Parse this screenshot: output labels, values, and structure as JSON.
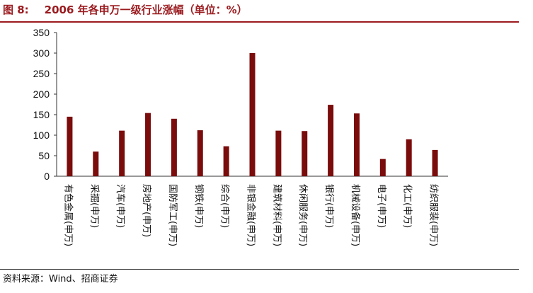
{
  "header": {
    "figure_label": "图 8:",
    "title": "2006 年各申万一级行业涨幅（单位：%）"
  },
  "footer": {
    "source": "资料来源：Wind、招商证券"
  },
  "colors": {
    "bar": "#7A0C0C",
    "accent": "#9B1B1F"
  },
  "chart_data": {
    "type": "bar",
    "title": "2006 年各申万一级行业涨幅（单位：%）",
    "categories": [
      "有色金属(申万)",
      "采掘(申万)",
      "汽车(申万)",
      "房地产(申万)",
      "国防军工(申万)",
      "钢铁(申万)",
      "综合(申万)",
      "非银金融(申万)",
      "建筑材料(申万)",
      "休闲服务(申万)",
      "银行(申万)",
      "机械设备(申万)",
      "电子(申万)",
      "化工(申万)",
      "纺织服装(申万)"
    ],
    "values": [
      145,
      60,
      111,
      154,
      140,
      112,
      73,
      300,
      111,
      110,
      174,
      153,
      42,
      90,
      64
    ],
    "yticks": [
      "0",
      "50",
      "100",
      "150",
      "200",
      "250",
      "300",
      "350"
    ],
    "ylim": [
      0,
      350
    ],
    "grid": false,
    "legend": "none"
  }
}
